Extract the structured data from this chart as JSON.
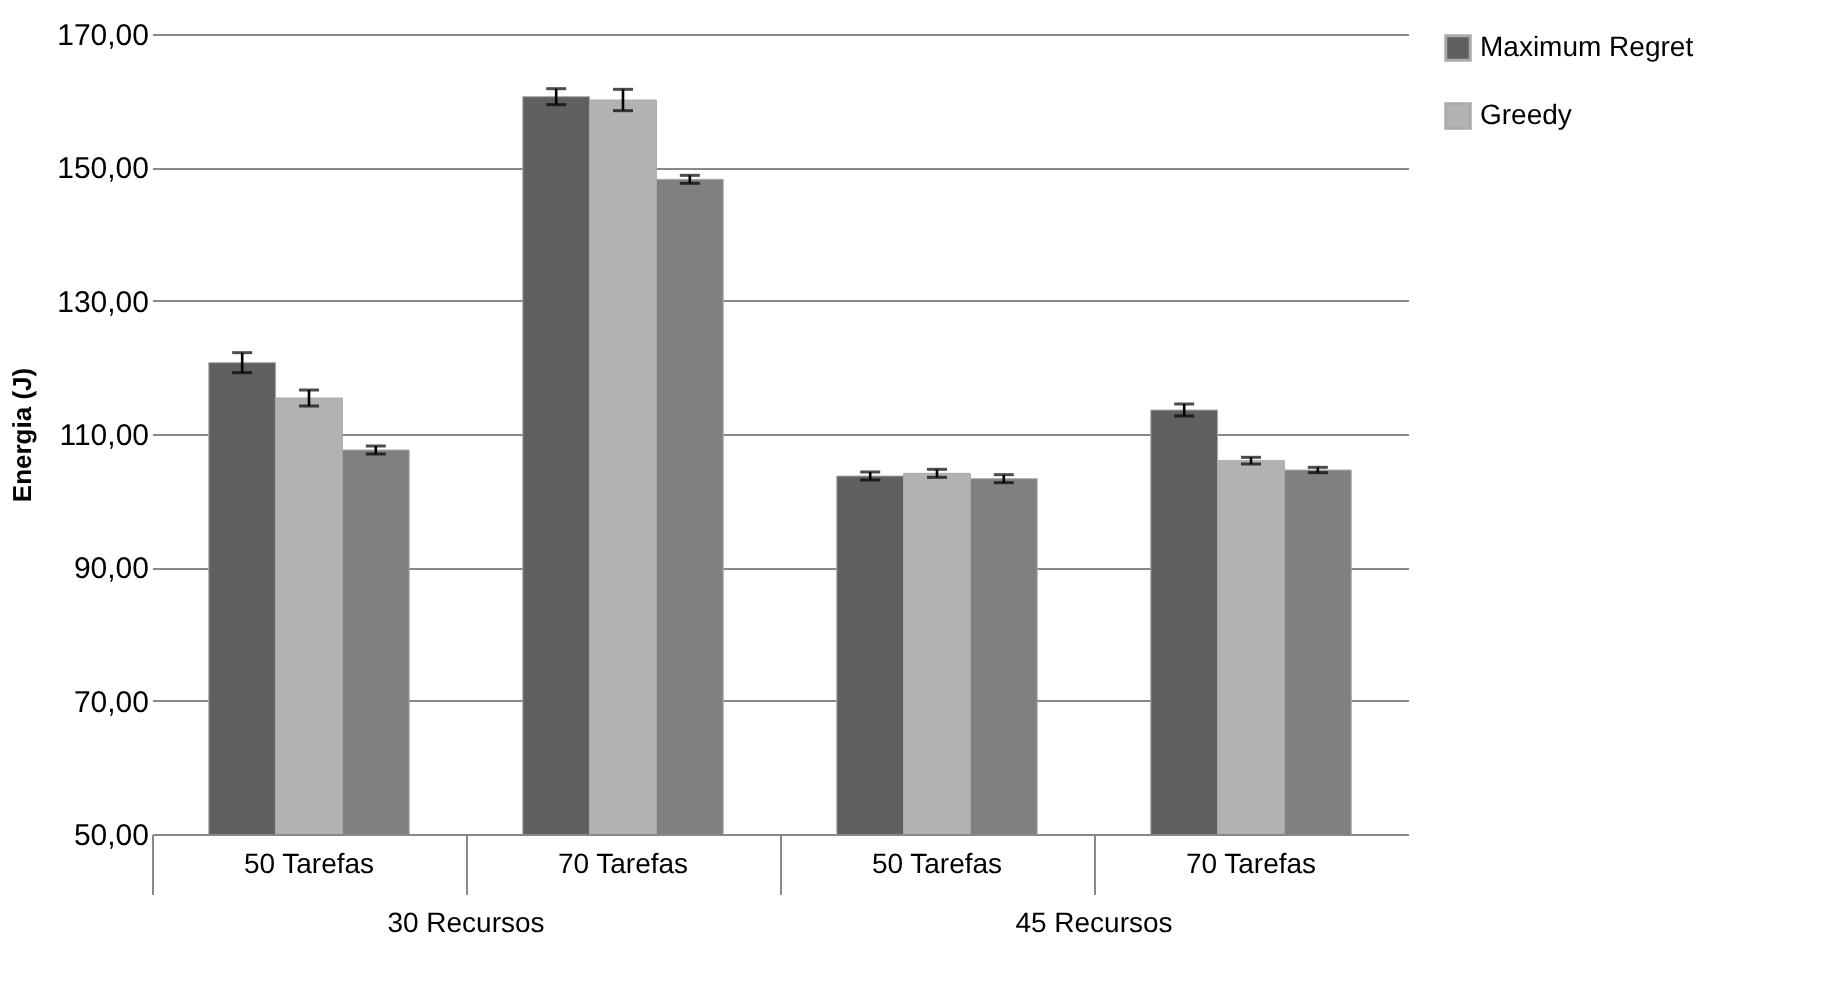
{
  "chart_data": {
    "type": "bar",
    "ylabel": "Energia (J)",
    "categories": [
      "50 Tarefas",
      "70 Tarefas",
      "50 Tarefas",
      "70 Tarefas"
    ],
    "series": [
      {
        "name": "Maximum Regret",
        "color": "#606060",
        "values": [
          120.7,
          160.6,
          103.7,
          113.6
        ],
        "errors": [
          1.5,
          1.2,
          0.6,
          0.9
        ]
      },
      {
        "name": "Greedy",
        "color": "#b2b2b2",
        "values": [
          115.4,
          160.1,
          104.1,
          106.0
        ],
        "errors": [
          1.2,
          1.6,
          0.6,
          0.5
        ]
      },
      {
        "color": "#808080",
        "values": [
          107.6,
          148.2,
          103.3,
          104.6
        ],
        "errors": [
          0.6,
          0.6,
          0.6,
          0.4
        ]
      }
    ],
    "ylim": [
      50,
      170
    ],
    "yticks": [
      {
        "value": 50,
        "label": "50,00"
      },
      {
        "value": 70,
        "label": "70,00"
      },
      {
        "value": 90,
        "label": "90,00"
      },
      {
        "value": 110,
        "label": "110,00"
      },
      {
        "value": 130,
        "label": "130,00"
      },
      {
        "value": 150,
        "label": "150,00"
      },
      {
        "value": 170,
        "label": "170,00"
      }
    ],
    "annotations": [
      "30 Recursos",
      "45 Recursos"
    ],
    "grid": "y",
    "legend": "right"
  }
}
